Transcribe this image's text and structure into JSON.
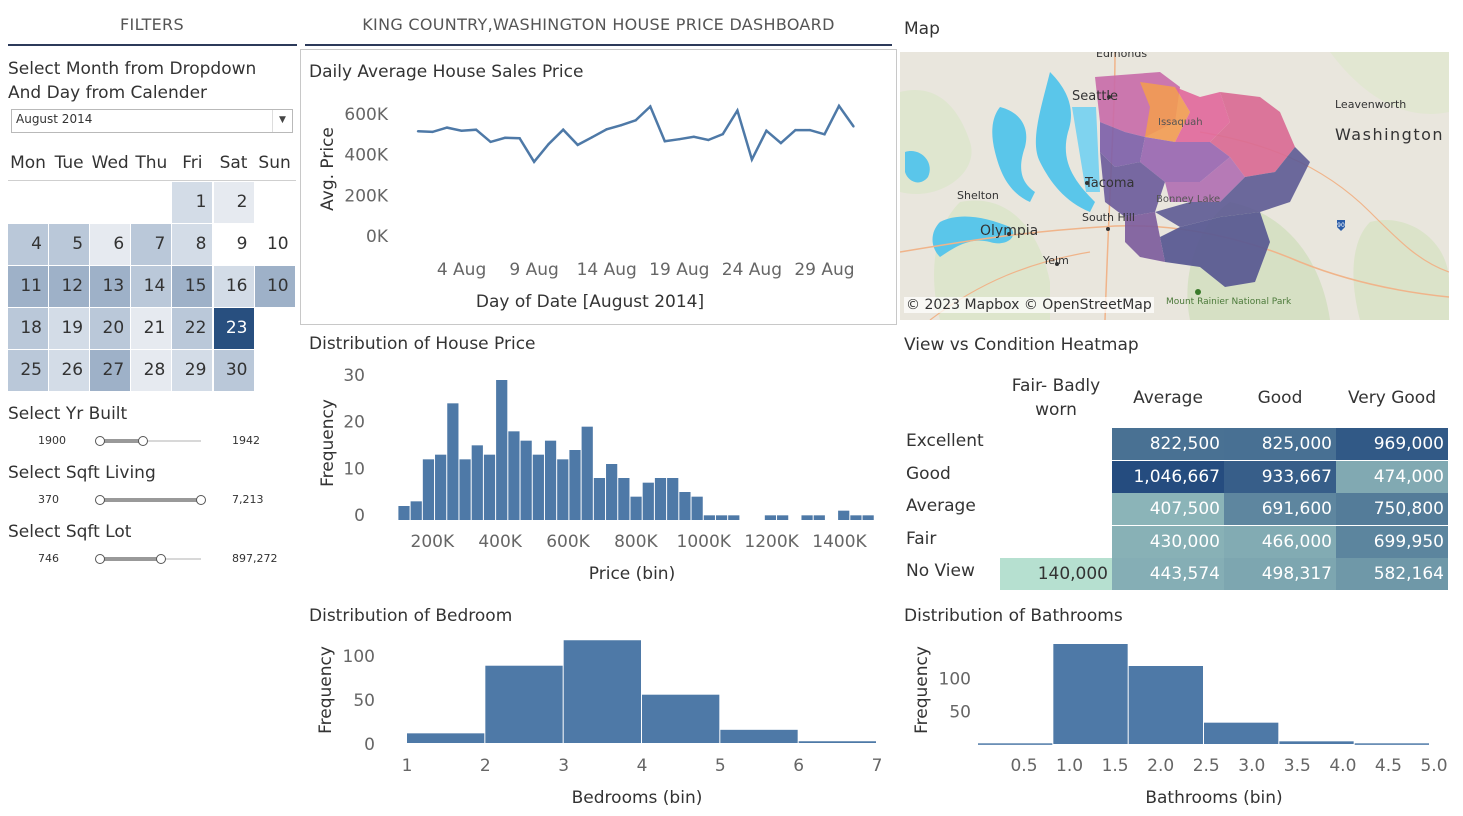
{
  "header": {
    "filters_title": "FILTERS",
    "dashboard_title": "KING COUNTRY,WASHINGTON HOUSE PRICE DASHBOARD",
    "map_title": "Map"
  },
  "filters": {
    "month_label_line1": "Select Month from Dropdown",
    "month_label_line2": "And Day from Calender",
    "month_value": "August 2014",
    "calendar": {
      "day_names": [
        "Mon",
        "Tue",
        "Wed",
        "Thu",
        "Fri",
        "Sat",
        "Sun"
      ],
      "days": [
        {
          "d": "1",
          "shade": 2
        },
        {
          "d": "2",
          "shade": 1
        },
        {
          "d": "4",
          "shade": 3
        },
        {
          "d": "5",
          "shade": 3
        },
        {
          "d": "6",
          "shade": 1
        },
        {
          "d": "7",
          "shade": 3
        },
        {
          "d": "8",
          "shade": 2
        },
        {
          "d": "9",
          "shade": 0
        },
        {
          "d": "10",
          "shade": 0
        },
        {
          "d": "11",
          "shade": 4
        },
        {
          "d": "12",
          "shade": 4
        },
        {
          "d": "13",
          "shade": 4
        },
        {
          "d": "14",
          "shade": 3
        },
        {
          "d": "15",
          "shade": 4
        },
        {
          "d": "16",
          "shade": 2
        },
        {
          "d": "10",
          "shade": 4
        },
        {
          "d": "18",
          "shade": 3
        },
        {
          "d": "19",
          "shade": 2
        },
        {
          "d": "20",
          "shade": 3
        },
        {
          "d": "21",
          "shade": 1
        },
        {
          "d": "22",
          "shade": 3
        },
        {
          "d": "23",
          "shade": 6
        },
        {
          "d": "",
          "shade": -1
        },
        {
          "d": "25",
          "shade": 3
        },
        {
          "d": "26",
          "shade": 2
        },
        {
          "d": "27",
          "shade": 4
        },
        {
          "d": "28",
          "shade": 1
        },
        {
          "d": "29",
          "shade": 2
        },
        {
          "d": "30",
          "shade": 3
        },
        {
          "d": "",
          "shade": -1
        }
      ]
    },
    "sliders": [
      {
        "label": "Select Yr Built",
        "min": "1900",
        "max": "1942",
        "lo": 0.0,
        "hi": 0.43
      },
      {
        "label": "Select Sqft Living",
        "min": "370",
        "max": "7,213",
        "lo": 0.0,
        "hi": 1.0
      },
      {
        "label": "Select Sqft Lot",
        "min": "746",
        "max": "897,272",
        "lo": 0.0,
        "hi": 0.6
      }
    ],
    "shade_colors": [
      "#ffffff",
      "#e6eaf0",
      "#d3dce7",
      "#bac8d9",
      "#9eb1c8",
      "#7a95b4",
      "#284f7f"
    ]
  },
  "map": {
    "attribution": "© 2023 Mapbox © OpenStreetMap",
    "places": [
      "Edmonds",
      "Seattle",
      "Tacoma",
      "Shelton",
      "Olympia",
      "South Hill",
      "Yelm",
      "Leavenworth",
      "Washington",
      "Issaquah",
      "Bonney Lake",
      "Mount Rainier National Park"
    ]
  },
  "colors": {
    "bar": "#4e79a7",
    "line": "#4e79a7",
    "axis_text": "#666666",
    "heat_low": "#b6e0d0",
    "heat_high": "#254c7f"
  },
  "chart_data": [
    {
      "type": "line",
      "title": "Daily Average House Sales Price",
      "xlabel": "Day of Date [August 2014]",
      "ylabel": "Avg. Price",
      "x_ticks": [
        "4 Aug",
        "9 Aug",
        "14 Aug",
        "19 Aug",
        "24 Aug",
        "29 Aug"
      ],
      "x_tick_days": [
        4,
        9,
        14,
        19,
        24,
        29
      ],
      "y_ticks": [
        "0K",
        "200K",
        "400K",
        "600K"
      ],
      "y_tick_values": [
        0,
        200000,
        400000,
        600000
      ],
      "ylim": [
        0,
        600000
      ],
      "xlim": [
        1,
        32
      ],
      "x": [
        1,
        2,
        3,
        4,
        5,
        6,
        7,
        8,
        9,
        10,
        11,
        12,
        13,
        14,
        15,
        16,
        17,
        18,
        19,
        20,
        21,
        22,
        23,
        24,
        25,
        26,
        27,
        28,
        29,
        30,
        31
      ],
      "y": [
        515000,
        512000,
        533000,
        518000,
        523000,
        463000,
        483000,
        481000,
        365000,
        452000,
        523000,
        448000,
        486000,
        525000,
        545000,
        569000,
        637000,
        466000,
        476000,
        488000,
        472000,
        501000,
        617000,
        376000,
        518000,
        457000,
        521000,
        521000,
        500000,
        640000,
        539000
      ]
    },
    {
      "type": "bar",
      "title": "Distribution of House Price",
      "xlabel": "Price (bin)",
      "ylabel": "Frequency",
      "x_ticks": [
        "200K",
        "400K",
        "600K",
        "800K",
        "1000K",
        "1200K",
        "1400K"
      ],
      "x_tick_values": [
        200000,
        400000,
        600000,
        800000,
        1000000,
        1200000,
        1400000
      ],
      "y_ticks": [
        "0",
        "10",
        "20",
        "30"
      ],
      "y_tick_values": [
        0,
        10,
        20,
        30
      ],
      "ylim": [
        0,
        30
      ],
      "xlim": [
        90000,
        1490000
      ],
      "bin_width": 36000,
      "bin_start": 100000,
      "values": [
        3,
        4,
        13,
        14,
        25,
        13,
        16,
        14,
        30,
        19,
        17,
        14,
        17,
        13,
        15,
        20,
        9,
        12,
        9,
        5,
        8,
        9,
        9,
        6,
        5,
        1,
        1,
        1,
        0,
        0,
        1,
        1,
        0,
        1,
        1,
        0,
        2,
        1,
        1
      ]
    },
    {
      "type": "bar",
      "title": "Distribution of Bedroom",
      "xlabel": "Bedrooms (bin)",
      "ylabel": "Frequency",
      "x_ticks": [
        "1",
        "2",
        "3",
        "4",
        "5",
        "6",
        "7"
      ],
      "x_tick_values": [
        1,
        2,
        3,
        4,
        5,
        6,
        7
      ],
      "y_ticks": [
        "0",
        "50",
        "100"
      ],
      "y_tick_values": [
        0,
        50,
        100
      ],
      "ylim": [
        0,
        115
      ],
      "bins": [
        [
          1,
          2
        ],
        [
          2,
          3
        ],
        [
          3,
          4
        ],
        [
          4,
          5
        ],
        [
          5,
          6
        ],
        [
          6,
          7
        ]
      ],
      "values": [
        11,
        88,
        117,
        55,
        15,
        2
      ]
    },
    {
      "type": "bar",
      "title": "Distribution of Bathrooms",
      "xlabel": "Bathrooms (bin)",
      "ylabel": "Frequency",
      "x_ticks": [
        "0.5",
        "1.0",
        "1.5",
        "2.0",
        "2.5",
        "3.0",
        "3.5",
        "4.0",
        "4.5",
        "5.0"
      ],
      "x_tick_values": [
        0.5,
        1.0,
        1.5,
        2.0,
        2.5,
        3.0,
        3.5,
        4.0,
        4.5,
        5.0
      ],
      "y_ticks": [
        "50",
        "100"
      ],
      "y_tick_values": [
        50,
        100
      ],
      "ylim": [
        0,
        150
      ],
      "bins": [
        [
          0.0,
          0.8
        ],
        [
          0.8,
          1.6
        ],
        [
          1.6,
          2.4
        ],
        [
          2.4,
          3.2
        ],
        [
          3.2,
          4.0
        ],
        [
          4.0,
          4.8
        ]
      ],
      "values": [
        1,
        150,
        117,
        32,
        4,
        1
      ]
    },
    {
      "type": "heatmap",
      "title": "View vs Condition Heatmap",
      "columns": [
        "Fair- Badly worn",
        "Average",
        "Good",
        "Very Good"
      ],
      "rows": [
        "Excellent",
        "Good",
        "Average",
        "Fair",
        "No View"
      ],
      "values": [
        [
          null,
          822500,
          825000,
          969000
        ],
        [
          null,
          1046667,
          933667,
          474000
        ],
        [
          null,
          407500,
          691600,
          750800
        ],
        [
          null,
          430000,
          466000,
          699950
        ],
        [
          140000,
          443574,
          498317,
          582164
        ]
      ],
      "labels": [
        [
          "",
          "822,500",
          "825,000",
          "969,000"
        ],
        [
          "",
          "1,046,667",
          "933,667",
          "474,000"
        ],
        [
          "",
          "407,500",
          "691,600",
          "750,800"
        ],
        [
          "",
          "430,000",
          "466,000",
          "699,950"
        ],
        [
          "140,000",
          "443,574",
          "498,317",
          "582,164"
        ]
      ]
    }
  ]
}
